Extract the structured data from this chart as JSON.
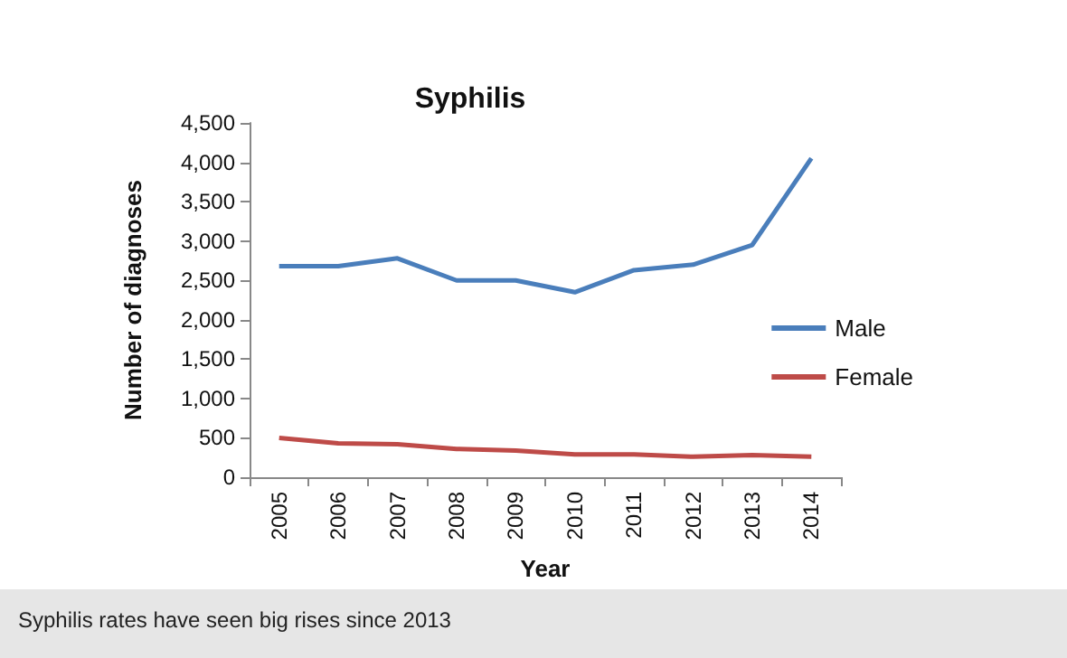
{
  "chart_data": {
    "type": "line",
    "title": "Syphilis",
    "xlabel": "Year",
    "ylabel": "Number of diagnoses",
    "categories": [
      "2005",
      "2006",
      "2007",
      "2008",
      "2009",
      "2010",
      "2011",
      "2012",
      "2013",
      "2014"
    ],
    "series": [
      {
        "name": "Male",
        "color": "#4a7ebb",
        "values": [
          2680,
          2680,
          2780,
          2500,
          2500,
          2350,
          2630,
          2700,
          2950,
          4050
        ]
      },
      {
        "name": "Female",
        "color": "#be4b48",
        "values": [
          500,
          430,
          420,
          360,
          340,
          290,
          290,
          260,
          280,
          260
        ]
      }
    ],
    "ylim": [
      0,
      4500
    ],
    "yticks": [
      0,
      500,
      {
        "value": 1000,
        "label": "1,000"
      },
      {
        "value": 1500,
        "label": "1,500"
      },
      {
        "value": 2000,
        "label": "2,000"
      },
      {
        "value": 2500,
        "label": "2,500"
      },
      {
        "value": 3000,
        "label": "3,000"
      },
      {
        "value": 3500,
        "label": "3,500"
      },
      {
        "value": 4000,
        "label": "4,000"
      },
      {
        "value": 4500,
        "label": "4,500"
      }
    ],
    "grid": false,
    "legend": "right",
    "marker": "none",
    "line_style": "solid",
    "annotations": [
      "Syphilis rates have seen big rises since 2013"
    ]
  }
}
